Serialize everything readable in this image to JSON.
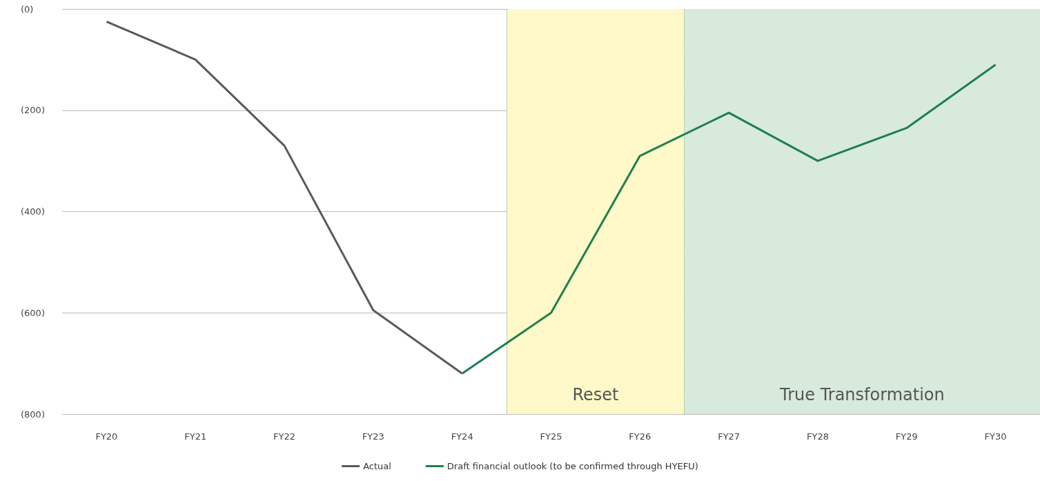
{
  "chart_data": {
    "type": "line",
    "categories": [
      "FY20",
      "FY21",
      "FY22",
      "FY23",
      "FY24",
      "FY25",
      "FY26",
      "FY27",
      "FY28",
      "FY29",
      "FY30"
    ],
    "series": [
      {
        "name": "Actual",
        "color": "#595959",
        "values": [
          -25,
          -100,
          -270,
          -595,
          -720,
          null,
          null,
          null,
          null,
          null,
          null
        ]
      },
      {
        "name": "Draft financial outlook (to be confirmed through HYEFU)",
        "color": "#1e7f4e",
        "values": [
          null,
          null,
          null,
          null,
          -720,
          -600,
          -290,
          -205,
          -300,
          -235,
          -110
        ]
      }
    ],
    "ylim": [
      -800,
      0
    ],
    "yticks": [
      {
        "value": -800,
        "label": "(800)"
      },
      {
        "value": -600,
        "label": "(600)"
      },
      {
        "value": -400,
        "label": "(400)"
      },
      {
        "value": -200,
        "label": "(200)"
      },
      {
        "value": 0,
        "label": "(0)"
      }
    ],
    "bands": [
      {
        "axis": "x",
        "from": "FY25",
        "to": "FY26",
        "label": "Reset",
        "color": "#fff8c8"
      },
      {
        "axis": "x",
        "from": "FY27",
        "to": "FY30",
        "label": "True Transformation",
        "color": "#d8eadb"
      }
    ],
    "grid": "y",
    "legend": "bottom",
    "marker": "none",
    "line_style": "solid"
  }
}
